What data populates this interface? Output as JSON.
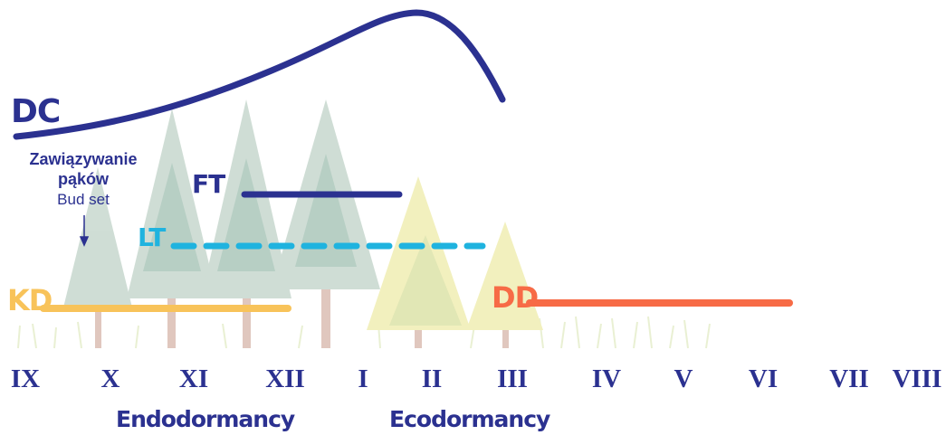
{
  "curve_labels": {
    "dc": "DC",
    "ft": "FT",
    "lt": "LT",
    "kd": "KD",
    "dd": "DD"
  },
  "bud_set": {
    "polish_line1": "Zawiązywanie",
    "polish_line2": "pąków",
    "english": "Bud set"
  },
  "months": [
    "IX",
    "X",
    "XI",
    "XII",
    "I",
    "II",
    "III",
    "IV",
    "V",
    "VI",
    "VII",
    "VIII"
  ],
  "phases": {
    "endodormancy": "Endodormancy",
    "ecodormancy": "Ecodormancy"
  },
  "colors": {
    "dc": "#2b3190",
    "ft": "#2b3190",
    "lt": "#1fb3df",
    "kd": "#f8c35a",
    "dd": "#f76b46",
    "text": "#2b3190"
  }
}
